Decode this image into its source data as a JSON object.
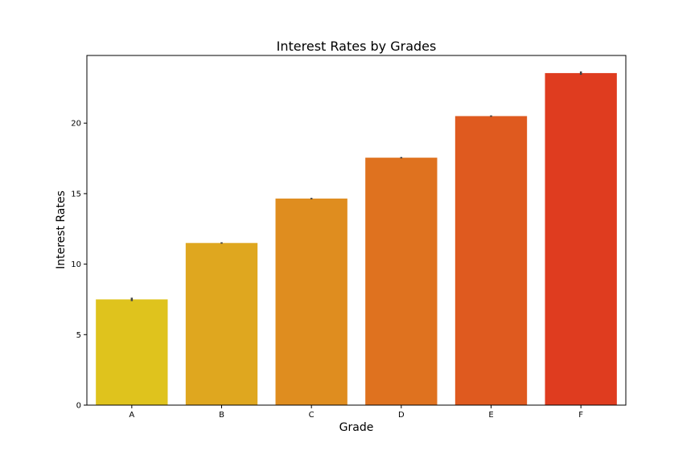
{
  "chart_data": {
    "type": "bar",
    "title": "Interest Rates by Grades",
    "xlabel": "Grade",
    "ylabel": "Interest Rates",
    "categories": [
      "A",
      "B",
      "C",
      "D",
      "E",
      "F"
    ],
    "values": [
      7.5,
      11.5,
      14.65,
      17.55,
      20.5,
      23.55
    ],
    "error_bars": [
      0.12,
      0.05,
      0.05,
      0.05,
      0.05,
      0.12
    ],
    "ylim": [
      0,
      24.8
    ],
    "yticks": [
      0,
      5,
      10,
      15,
      20
    ],
    "grid": false,
    "colors": [
      "#dfc31d",
      "#dfa71f",
      "#df8d1f",
      "#df721f",
      "#df5a1f",
      "#df3c1f"
    ],
    "error_bar_color": "#444444"
  }
}
